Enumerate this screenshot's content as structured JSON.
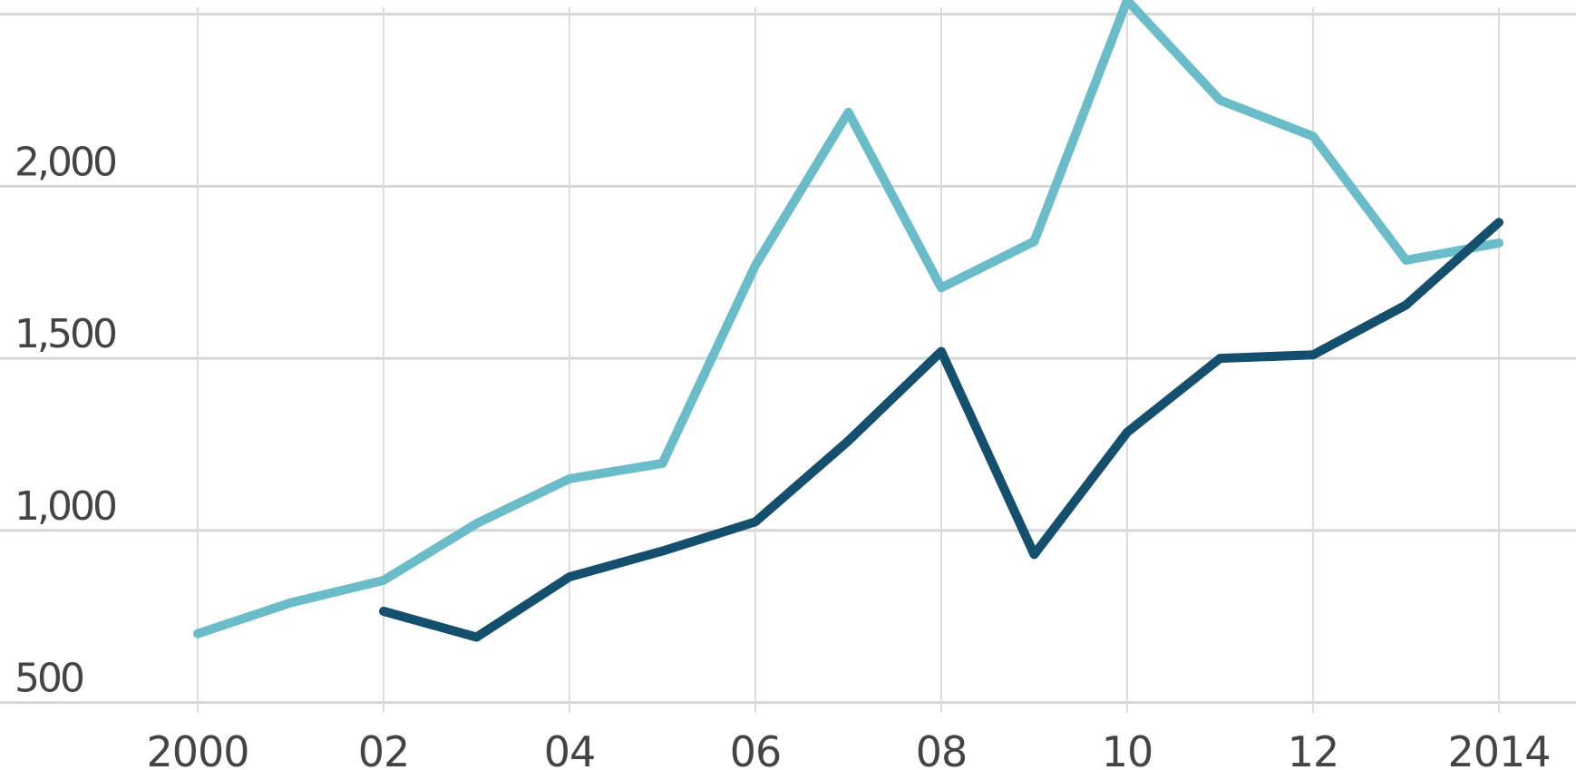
{
  "chart_data": {
    "type": "line",
    "title": "",
    "xlabel": "",
    "ylabel": "",
    "x": [
      2000,
      2001,
      2002,
      2003,
      2004,
      2005,
      2006,
      2007,
      2008,
      2009,
      2010,
      2011,
      2012,
      2013,
      2014
    ],
    "xlim": [
      2000,
      2014
    ],
    "ylim": [
      470,
      2520
    ],
    "x_ticks": [
      {
        "value": 2000,
        "label": "2000"
      },
      {
        "value": 2002,
        "label": "02"
      },
      {
        "value": 2004,
        "label": "04"
      },
      {
        "value": 2006,
        "label": "06"
      },
      {
        "value": 2008,
        "label": "08"
      },
      {
        "value": 2010,
        "label": "10"
      },
      {
        "value": 2012,
        "label": "12"
      },
      {
        "value": 2014,
        "label": "2014"
      }
    ],
    "y_ticks": [
      {
        "value": 500,
        "label": "500"
      },
      {
        "value": 1000,
        "label": "1,000"
      },
      {
        "value": 1500,
        "label": "1,500"
      },
      {
        "value": 2000,
        "label": "2,000"
      },
      {
        "value": 2500,
        "label": ""
      }
    ],
    "grid": true,
    "series": [
      {
        "color": "#6bbcc9",
        "values": [
          700,
          790,
          855,
          1020,
          1150,
          1195,
          1770,
          2215,
          1705,
          1840,
          2540,
          2250,
          2145,
          1785,
          1835
        ]
      },
      {
        "color": "#144f6e",
        "values": [
          null,
          null,
          765,
          690,
          865,
          940,
          1025,
          1260,
          1520,
          930,
          1285,
          1500,
          1510,
          1655,
          1895
        ]
      }
    ]
  }
}
